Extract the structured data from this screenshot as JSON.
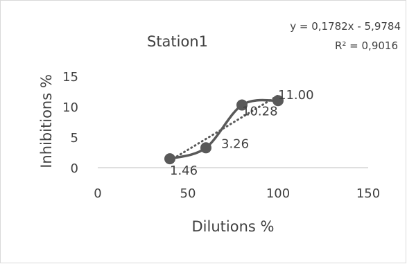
{
  "chart_data": {
    "type": "scatter",
    "title": "Station1",
    "xlabel": "Dilutions %",
    "ylabel": "Inhibitions %",
    "xlim": [
      0,
      150
    ],
    "ylim": [
      0,
      15
    ],
    "x_ticks": [
      "0",
      "50",
      "100",
      "150"
    ],
    "y_ticks": [
      "0",
      "5",
      "10",
      "15"
    ],
    "grid": false,
    "legend": "none",
    "smoothed_line": true,
    "series": [
      {
        "x": [
          40,
          60,
          80,
          100
        ],
        "y": [
          1.46,
          3.26,
          10.28,
          11.0
        ],
        "data_labels": [
          "1.46",
          "3.26",
          "10.28",
          "11.00"
        ]
      }
    ],
    "trendline": {
      "type": "linear",
      "slope": 0.1782,
      "intercept": -5.9784,
      "x_range": [
        40,
        100
      ],
      "equation_label": "y = 0,1782x - 5,9784",
      "r2_label": "R² = 0,9016"
    },
    "colors": {
      "series": "#595959",
      "axis": "#bfbfbf",
      "text": "#404040",
      "border": "#d9d9d9"
    }
  }
}
